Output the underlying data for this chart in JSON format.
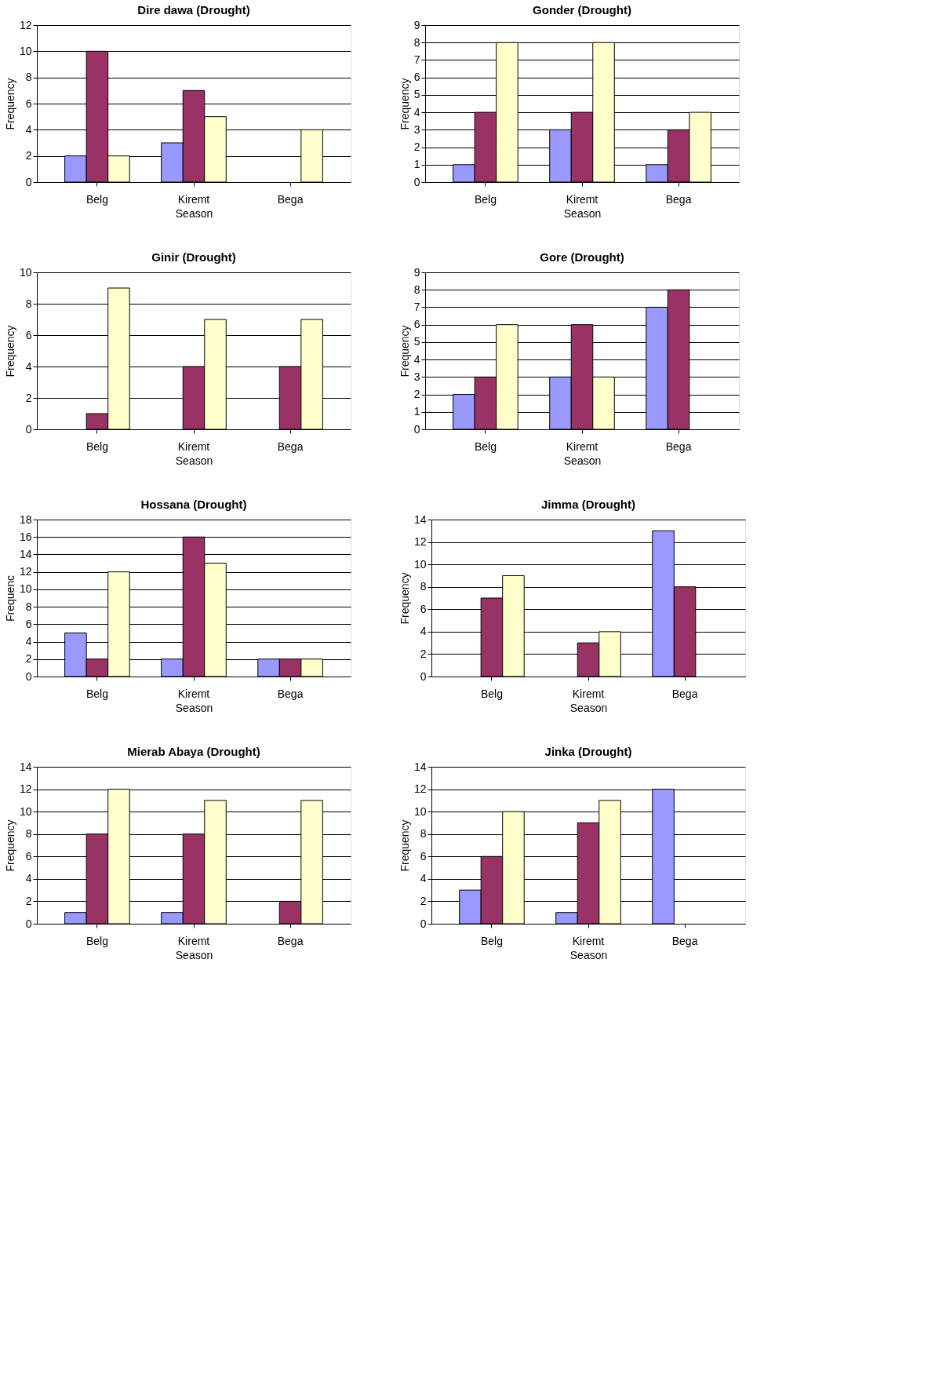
{
  "chart_data": [
    {
      "type": "bar",
      "title": "Dire dawa (Drought)",
      "xlabel": "Season",
      "ylabel": "Frequency",
      "categories": [
        "Belg",
        "Kiremt",
        "Bega"
      ],
      "ylim": [
        0,
        12
      ],
      "yticks": [
        0,
        2,
        4,
        6,
        8,
        10,
        12
      ],
      "grid": "y",
      "series": [
        {
          "color": "#9999ff",
          "values": [
            2,
            3,
            null
          ]
        },
        {
          "color": "#993366",
          "values": [
            10,
            7,
            null
          ]
        },
        {
          "color": "#ffffcc",
          "values": [
            2,
            5,
            4
          ]
        }
      ]
    },
    {
      "type": "bar",
      "title": "Gonder (Drought)",
      "xlabel": "Season",
      "ylabel": "Frequency",
      "categories": [
        "Belg",
        "Kiremt",
        "Bega"
      ],
      "ylim": [
        0,
        9
      ],
      "yticks": [
        0,
        1,
        2,
        3,
        4,
        5,
        6,
        7,
        8,
        9
      ],
      "grid": "y",
      "series": [
        {
          "color": "#9999ff",
          "values": [
            1,
            3,
            1
          ]
        },
        {
          "color": "#993366",
          "values": [
            4,
            4,
            3
          ]
        },
        {
          "color": "#ffffcc",
          "values": [
            8,
            8,
            4
          ]
        }
      ]
    },
    {
      "type": "bar",
      "title": "Ginir (Drought)",
      "xlabel": "Season",
      "ylabel": "Frequency",
      "categories": [
        "Belg",
        "Kiremt",
        "Bega"
      ],
      "ylim": [
        0,
        10
      ],
      "yticks": [
        0,
        2,
        4,
        6,
        8,
        10
      ],
      "grid": "y",
      "series": [
        {
          "color": "#9999ff",
          "values": [
            null,
            null,
            null
          ]
        },
        {
          "color": "#993366",
          "values": [
            1,
            4,
            4
          ]
        },
        {
          "color": "#ffffcc",
          "values": [
            9,
            7,
            7
          ]
        }
      ]
    },
    {
      "type": "bar",
      "title": "Gore (Drought)",
      "xlabel": "Season",
      "ylabel": "Frequency",
      "categories": [
        "Belg",
        "Kiremt",
        "Bega"
      ],
      "ylim": [
        0,
        9
      ],
      "yticks": [
        0,
        1,
        2,
        3,
        4,
        5,
        6,
        7,
        8,
        9
      ],
      "grid": "y",
      "series": [
        {
          "color": "#9999ff",
          "values": [
            2,
            3,
            7
          ]
        },
        {
          "color": "#993366",
          "values": [
            3,
            6,
            8
          ]
        },
        {
          "color": "#ffffcc",
          "values": [
            6,
            3,
            null
          ]
        }
      ]
    },
    {
      "type": "bar",
      "title": "Hossana (Drought)",
      "xlabel": "Season",
      "ylabel": "Frequenc",
      "categories": [
        "Belg",
        "Kiremt",
        "Bega"
      ],
      "ylim": [
        0,
        18
      ],
      "yticks": [
        0,
        2,
        4,
        6,
        8,
        10,
        12,
        14,
        16,
        18
      ],
      "grid": "y",
      "series": [
        {
          "color": "#9999ff",
          "values": [
            5,
            2,
            2
          ]
        },
        {
          "color": "#993366",
          "values": [
            2,
            16,
            2
          ]
        },
        {
          "color": "#ffffcc",
          "values": [
            12,
            13,
            2
          ]
        }
      ]
    },
    {
      "type": "bar",
      "title": "Jimma (Drought)",
      "xlabel": "Season",
      "ylabel": "Frequency",
      "categories": [
        "Belg",
        "Kiremt",
        "Bega"
      ],
      "ylim": [
        0,
        14
      ],
      "yticks": [
        0,
        2,
        4,
        6,
        8,
        10,
        12,
        14
      ],
      "grid": "y",
      "series": [
        {
          "color": "#9999ff",
          "values": [
            null,
            null,
            13
          ]
        },
        {
          "color": "#993366",
          "values": [
            7,
            3,
            8
          ]
        },
        {
          "color": "#ffffcc",
          "values": [
            9,
            4,
            null
          ]
        }
      ]
    },
    {
      "type": "bar",
      "title": "Mierab Abaya (Drought)",
      "xlabel": "Season",
      "ylabel": "Frequency",
      "categories": [
        "Belg",
        "Kiremt",
        "Bega"
      ],
      "ylim": [
        0,
        14
      ],
      "yticks": [
        0,
        2,
        4,
        6,
        8,
        10,
        12,
        14
      ],
      "grid": "y",
      "series": [
        {
          "color": "#9999ff",
          "values": [
            1,
            1,
            null
          ]
        },
        {
          "color": "#993366",
          "values": [
            8,
            8,
            2
          ]
        },
        {
          "color": "#ffffcc",
          "values": [
            12,
            11,
            11
          ]
        }
      ]
    },
    {
      "type": "bar",
      "title": "Jinka (Drought)",
      "xlabel": "Season",
      "ylabel": "Frequency",
      "categories": [
        "Belg",
        "Kiremt",
        "Bega"
      ],
      "ylim": [
        0,
        14
      ],
      "yticks": [
        0,
        2,
        4,
        6,
        8,
        10,
        12,
        14
      ],
      "grid": "y",
      "series": [
        {
          "color": "#9999ff",
          "values": [
            3,
            1,
            12
          ]
        },
        {
          "color": "#993366",
          "values": [
            6,
            9,
            null
          ]
        },
        {
          "color": "#ffffcc",
          "values": [
            10,
            11,
            null
          ]
        }
      ]
    }
  ]
}
